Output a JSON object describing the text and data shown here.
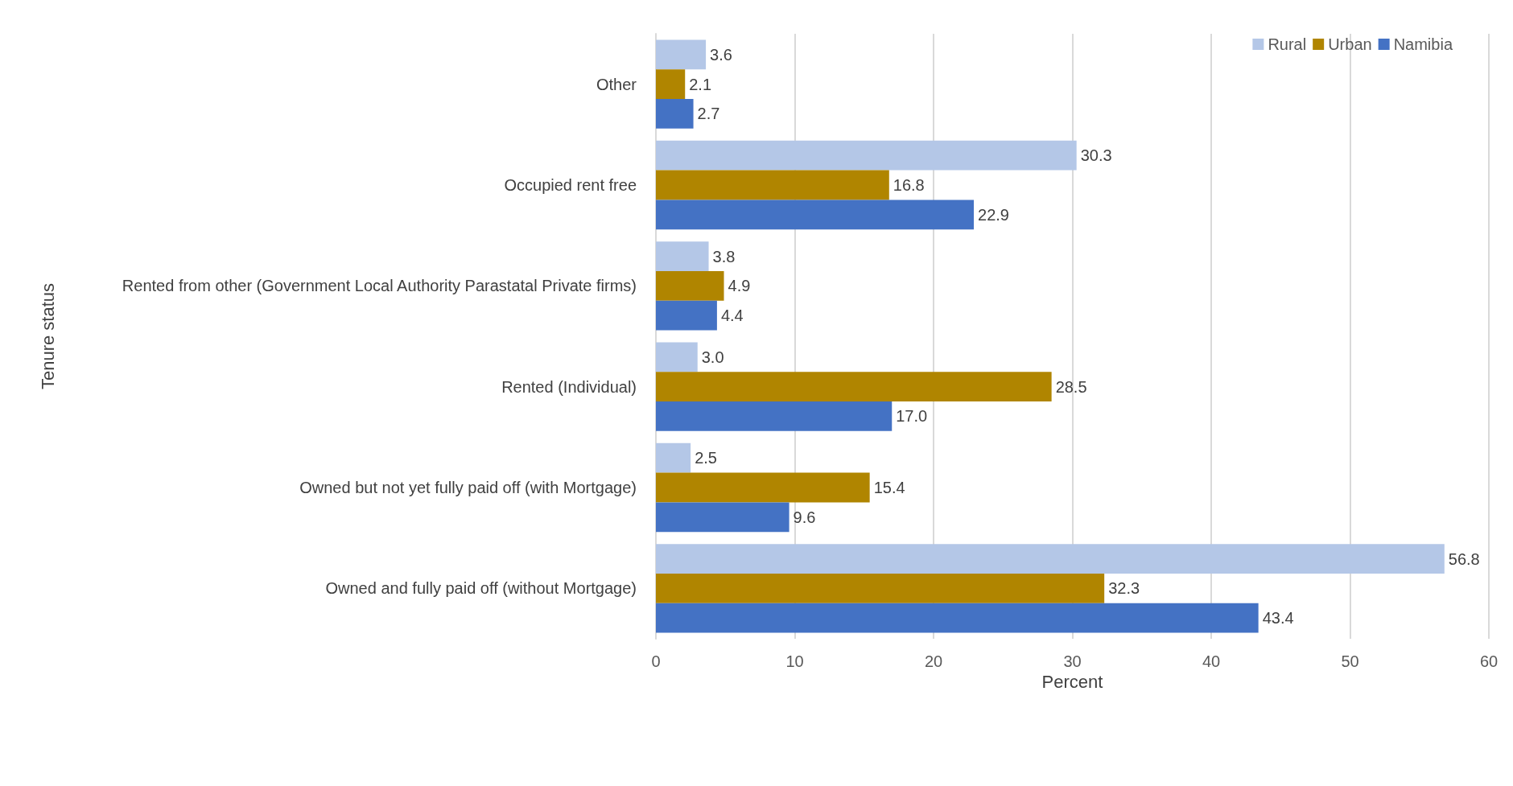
{
  "chart_data": {
    "type": "bar",
    "orientation": "horizontal",
    "ylabel": "Tenure status",
    "xlabel": "Percent",
    "categories": [
      "Other",
      "Occupied rent free",
      "Rented from other (Government Local Authority Parastatal Private firms)",
      "Rented (Individual)",
      "Owned but not yet fully paid off (with Mortgage)",
      "Owned and fully paid off (without Mortgage)"
    ],
    "series": [
      {
        "name": "Rural",
        "color": "#b4c7e7",
        "values": [
          3.6,
          30.3,
          3.8,
          3.0,
          2.5,
          56.8
        ],
        "value_labels": [
          "3.6",
          "30.3",
          "3.8",
          "3.0",
          "2.5",
          "56.8"
        ]
      },
      {
        "name": "Urban",
        "color": "#b08500",
        "values": [
          2.1,
          16.8,
          4.9,
          28.5,
          15.4,
          32.3
        ],
        "value_labels": [
          "2.1",
          "16.8",
          "4.9",
          "28.5",
          "15.4",
          "32.3"
        ]
      },
      {
        "name": "Namibia",
        "color": "#4472c4",
        "values": [
          2.7,
          22.9,
          4.4,
          17.0,
          9.6,
          43.4
        ],
        "value_labels": [
          "2.7",
          "22.9",
          "4.4",
          "17.0",
          "9.6",
          "43.4"
        ]
      }
    ],
    "xlim": [
      0,
      60
    ],
    "xticks": [
      0,
      10,
      20,
      30,
      40,
      50,
      60
    ],
    "grid": "x",
    "legend": "top right"
  }
}
